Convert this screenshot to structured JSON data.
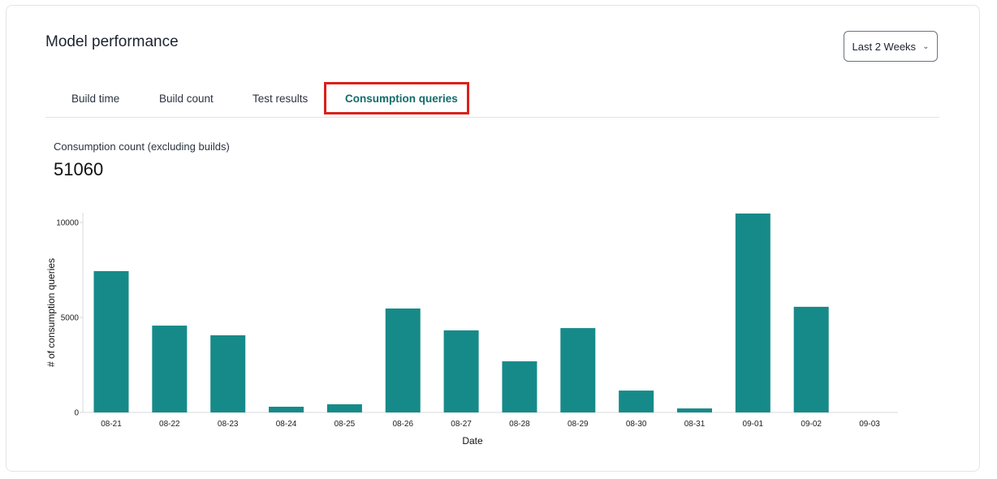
{
  "header": {
    "title": "Model performance",
    "range_select": {
      "value": "Last 2 Weeks",
      "icon": "chevron-down-icon"
    }
  },
  "tabs": [
    {
      "label": "Build time",
      "active": false
    },
    {
      "label": "Build count",
      "active": false
    },
    {
      "label": "Test results",
      "active": false
    },
    {
      "label": "Consumption queries",
      "active": true
    }
  ],
  "highlight_color": "#d9211b",
  "kpi": {
    "label": "Consumption count (excluding builds)",
    "value": "51060"
  },
  "chart_data": {
    "type": "bar",
    "xlabel": "Date",
    "ylabel": "# of consumption queries",
    "categories": [
      "08-21",
      "08-22",
      "08-23",
      "08-24",
      "08-25",
      "08-26",
      "08-27",
      "08-28",
      "08-29",
      "08-30",
      "08-31",
      "09-01",
      "09-02",
      "09-03"
    ],
    "values": [
      7440,
      4570,
      4060,
      300,
      430,
      5470,
      4320,
      2690,
      4440,
      1150,
      210,
      10470,
      5560,
      0
    ],
    "yticks": [
      0,
      5000,
      10000
    ],
    "ylim": [
      0,
      10470
    ],
    "grid": false,
    "bar_color": "#168a89"
  }
}
